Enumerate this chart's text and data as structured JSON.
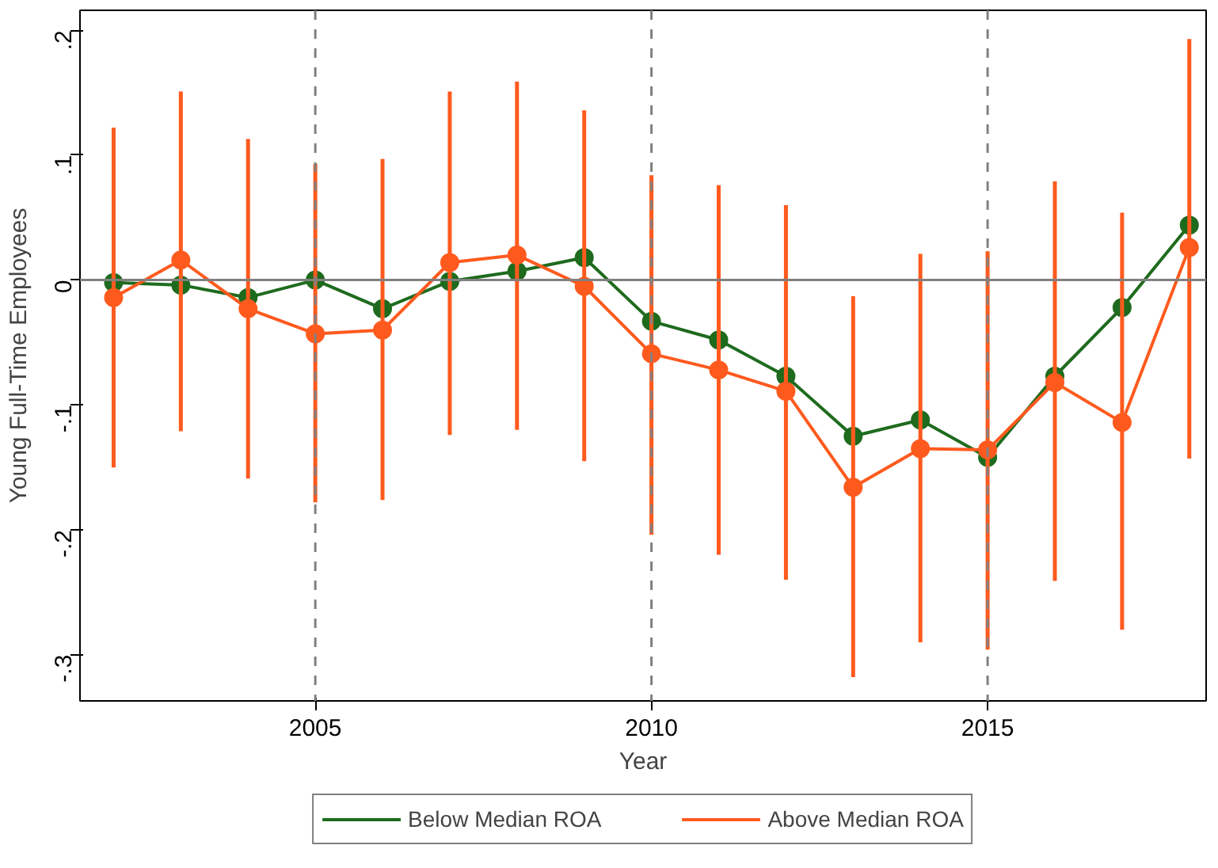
{
  "chart_data": {
    "type": "line",
    "xlabel": "Year",
    "ylabel": "Young Full-Time Employees",
    "x": [
      2002,
      2003,
      2004,
      2005,
      2006,
      2007,
      2008,
      2009,
      2010,
      2011,
      2012,
      2013,
      2014,
      2015,
      2016,
      2017,
      2018
    ],
    "series": [
      {
        "name": "Below Median ROA",
        "color": "#1e6b1e",
        "values": [
          -0.002,
          -0.004,
          -0.014,
          0.0,
          -0.023,
          -0.001,
          0.007,
          0.018,
          -0.033,
          -0.048,
          -0.077,
          -0.125,
          -0.112,
          -0.142,
          -0.077,
          -0.022,
          0.044
        ]
      },
      {
        "name": "Above Median ROA",
        "color": "#ff5a1e",
        "values": [
          -0.014,
          0.016,
          -0.023,
          -0.043,
          -0.04,
          0.014,
          0.02,
          -0.005,
          -0.059,
          -0.072,
          -0.089,
          -0.166,
          -0.135,
          -0.136,
          -0.082,
          -0.114,
          0.026
        ],
        "errors": [
          [
            -0.15,
            0.122
          ],
          [
            -0.121,
            0.151
          ],
          [
            -0.159,
            0.113
          ],
          [
            -0.178,
            0.093
          ],
          [
            -0.176,
            0.097
          ],
          [
            -0.124,
            0.151
          ],
          [
            -0.12,
            0.159
          ],
          [
            -0.145,
            0.136
          ],
          [
            -0.204,
            0.084
          ],
          [
            -0.22,
            0.076
          ],
          [
            -0.24,
            0.06
          ],
          [
            -0.318,
            -0.013
          ],
          [
            -0.29,
            0.021
          ],
          [
            -0.296,
            0.023
          ],
          [
            -0.241,
            0.079
          ],
          [
            -0.28,
            0.054
          ],
          [
            -0.143,
            0.193
          ]
        ]
      }
    ],
    "xlim": [
      2001.5,
      2018.25
    ],
    "xticks": [
      2005,
      2010,
      2015
    ],
    "ylim": [
      -0.337,
      0.216
    ],
    "yticks": [
      {
        "value": -0.3,
        "label": "-.3"
      },
      {
        "value": -0.2,
        "label": "-.2"
      },
      {
        "value": -0.1,
        "label": "-.1"
      },
      {
        "value": 0,
        "label": "0"
      },
      {
        "value": 0.1,
        "label": ".1"
      },
      {
        "value": 0.2,
        "label": ".2"
      }
    ],
    "ref_lines": [
      {
        "axis": "y",
        "value": 0,
        "color": "#808080",
        "line_style": "solid"
      },
      {
        "axis": "x",
        "value": 2005,
        "color": "#808080",
        "line_style": "dashed"
      },
      {
        "axis": "x",
        "value": 2010,
        "color": "#808080",
        "line_style": "dashed"
      },
      {
        "axis": "x",
        "value": 2015,
        "color": "#808080",
        "line_style": "dashed"
      }
    ],
    "grid": false,
    "legend": "bottom",
    "marker": "circle",
    "line_style": "solid"
  }
}
